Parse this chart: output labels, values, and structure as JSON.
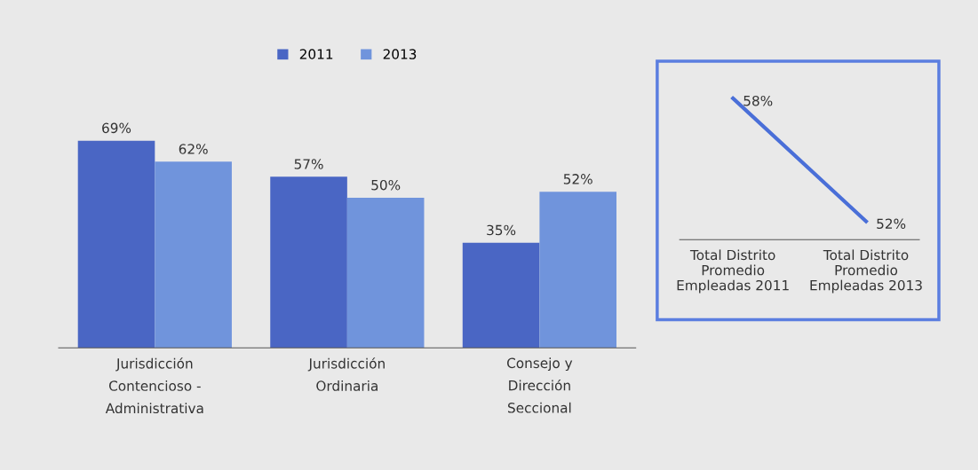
{
  "chart_data": [
    {
      "type": "bar",
      "categories": [
        "Jurisdicción\nContencioso -\nAdministrativa",
        "Jurisdicción\nOrdinaria",
        "Consejo y\nDirección\nSeccional"
      ],
      "series": [
        {
          "name": "2011",
          "color": "#4a66c4",
          "values": [
            69,
            57,
            35
          ],
          "value_labels": [
            "69%",
            "57%",
            "35%"
          ]
        },
        {
          "name": "2013",
          "color": "#7094dc",
          "values": [
            62,
            50,
            52
          ],
          "value_labels": [
            "62%",
            "50%",
            "52%"
          ]
        }
      ],
      "legend": "top",
      "grid": false
    },
    {
      "type": "line",
      "categories": [
        "Total Distrito\nPromedio\nEmpleadas 2011",
        "Total Distrito\nPromedio\nEmpleadas 2013"
      ],
      "series": [
        {
          "color": "#4a6fd8",
          "values": [
            58,
            52
          ],
          "value_labels": [
            "58%",
            "52%"
          ]
        }
      ],
      "legend": false,
      "grid": false,
      "marker": "none"
    }
  ]
}
